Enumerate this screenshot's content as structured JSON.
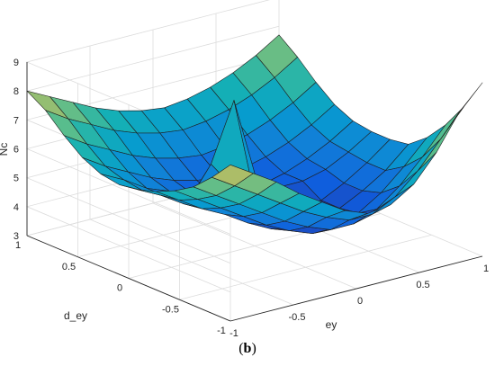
{
  "caption": {
    "open": "(",
    "letter": "b",
    "close": ")"
  },
  "chart_data": {
    "type": "surface",
    "title": "",
    "xlabel": "ey",
    "ylabel": "d_ey",
    "zlabel": "Nc",
    "xlim": [
      -1,
      1
    ],
    "ylim": [
      -1,
      1
    ],
    "zlim": [
      3,
      9
    ],
    "xticks": [
      "-1",
      "-0.5",
      "0",
      "0.5",
      "1"
    ],
    "yticks": [
      "-1",
      "-0.5",
      "0",
      "0.5",
      "1"
    ],
    "zticks": [
      "3",
      "4",
      "5",
      "6",
      "7",
      "8",
      "9"
    ],
    "grid": true,
    "colormap": "parula",
    "x": [
      -1,
      -0.818,
      -0.636,
      -0.455,
      -0.273,
      -0.091,
      0.091,
      0.273,
      0.455,
      0.636,
      0.818,
      1
    ],
    "y": [
      1,
      0.818,
      0.636,
      0.455,
      0.273,
      0.091,
      -0.091,
      -0.273,
      -0.455,
      -0.636,
      -0.818,
      -1
    ],
    "z": [
      [
        8.0,
        7.6,
        7.2,
        6.8,
        6.5,
        6.3,
        6.2,
        6.3,
        6.5,
        6.8,
        7.2,
        7.7
      ],
      [
        7.6,
        7.1,
        6.7,
        6.3,
        6.0,
        5.8,
        5.7,
        5.8,
        6.0,
        6.3,
        6.7,
        7.2
      ],
      [
        7.0,
        6.5,
        6.1,
        5.7,
        5.4,
        5.2,
        5.1,
        5.2,
        5.4,
        5.7,
        6.1,
        6.6
      ],
      [
        6.5,
        6.0,
        5.6,
        5.2,
        4.9,
        4.7,
        4.6,
        4.7,
        4.9,
        5.2,
        5.6,
        6.1
      ],
      [
        6.2,
        5.8,
        5.3,
        5.0,
        4.7,
        4.4,
        4.3,
        4.4,
        4.6,
        4.9,
        5.3,
        5.8
      ],
      [
        6.1,
        5.7,
        5.3,
        4.9,
        6.0,
        8.0,
        5.0,
        4.6,
        4.6,
        4.8,
        5.2,
        5.7
      ],
      [
        6.2,
        5.8,
        5.3,
        4.9,
        5.6,
        5.3,
        4.6,
        4.2,
        4.2,
        4.6,
        5.1,
        5.7
      ],
      [
        6.4,
        5.9,
        5.4,
        5.0,
        4.5,
        4.1,
        3.9,
        4.0,
        4.2,
        4.6,
        5.1,
        5.8
      ],
      [
        6.7,
        6.2,
        5.7,
        5.2,
        4.7,
        4.3,
        4.0,
        4.0,
        4.3,
        4.8,
        5.5,
        6.3
      ],
      [
        7.1,
        6.6,
        6.1,
        5.6,
        5.1,
        4.7,
        4.4,
        4.4,
        4.7,
        5.3,
        6.1,
        7.0
      ],
      [
        7.7,
        7.2,
        6.7,
        6.2,
        5.7,
        5.3,
        5.0,
        5.0,
        5.4,
        6.1,
        7.0,
        7.9
      ],
      [
        8.4,
        7.9,
        7.4,
        6.8,
        6.3,
        5.8,
        5.5,
        5.6,
        6.1,
        7.0,
        8.2,
        9.0
      ]
    ]
  }
}
